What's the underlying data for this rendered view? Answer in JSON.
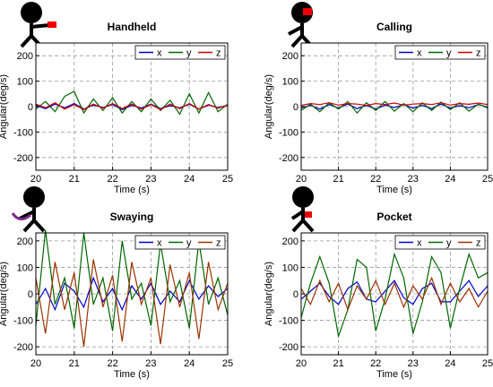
{
  "chart_data": [
    {
      "type": "line",
      "title": "Handheld",
      "xlabel": "Time (s)",
      "ylabel": "Angular(deg/s)",
      "xlim": [
        20,
        25
      ],
      "ylim": [
        -250,
        250
      ],
      "xticks": [
        20,
        21,
        22,
        23,
        24,
        25
      ],
      "yticks": [
        -200,
        -100,
        0,
        100,
        200
      ],
      "grid": true,
      "legend": "top-right",
      "series": [
        {
          "name": "x",
          "color": "#0000cc",
          "t": [
            20,
            20.25,
            20.5,
            20.75,
            21,
            21.25,
            21.5,
            21.75,
            22,
            22.25,
            22.5,
            22.75,
            23,
            23.25,
            23.5,
            23.75,
            24,
            24.25,
            24.5,
            24.75,
            25
          ],
          "values": [
            5,
            -8,
            10,
            -5,
            12,
            -10,
            6,
            -4,
            8,
            -12,
            5,
            -6,
            10,
            -8,
            4,
            -5,
            9,
            -10,
            6,
            -4,
            5
          ]
        },
        {
          "name": "y",
          "color": "#006600",
          "t": [
            20,
            20.25,
            20.5,
            20.75,
            21,
            21.25,
            21.5,
            21.75,
            22,
            22.25,
            22.5,
            22.75,
            23,
            23.25,
            23.5,
            23.75,
            24,
            24.25,
            24.5,
            24.75,
            25
          ],
          "values": [
            -10,
            20,
            -20,
            40,
            60,
            -25,
            30,
            -15,
            35,
            -25,
            20,
            -20,
            30,
            -15,
            25,
            -30,
            50,
            -25,
            55,
            -20,
            10
          ]
        },
        {
          "name": "z",
          "color": "#cc0000",
          "t": [
            20,
            20.25,
            20.5,
            20.75,
            21,
            21.25,
            21.5,
            21.75,
            22,
            22.25,
            22.5,
            22.75,
            23,
            23.25,
            23.5,
            23.75,
            24,
            24.25,
            24.5,
            24.75,
            25
          ],
          "values": [
            10,
            -5,
            15,
            -10,
            8,
            -12,
            10,
            -6,
            12,
            -8,
            10,
            -10,
            8,
            -12,
            10,
            -8,
            12,
            -10,
            8,
            -6,
            5
          ]
        }
      ]
    },
    {
      "type": "line",
      "title": "Calling",
      "xlabel": "Time (s)",
      "ylabel": "Angular(deg/s)",
      "xlim": [
        20,
        25
      ],
      "ylim": [
        -250,
        250
      ],
      "xticks": [
        20,
        21,
        22,
        23,
        24,
        25
      ],
      "yticks": [
        -200,
        -100,
        0,
        100,
        200
      ],
      "grid": true,
      "legend": "top-right",
      "series": [
        {
          "name": "x",
          "color": "#0000cc",
          "t": [
            20,
            20.25,
            20.5,
            20.75,
            21,
            21.25,
            21.5,
            21.75,
            22,
            22.25,
            22.5,
            22.75,
            23,
            23.25,
            23.5,
            23.75,
            24,
            24.25,
            24.5,
            24.75,
            25
          ],
          "values": [
            -5,
            5,
            -10,
            8,
            -6,
            10,
            -8,
            5,
            -10,
            6,
            -4,
            8,
            -6,
            5,
            -8,
            10,
            -6,
            4,
            -5,
            8,
            -2
          ]
        },
        {
          "name": "y",
          "color": "#006600",
          "t": [
            20,
            20.25,
            20.5,
            20.75,
            21,
            21.25,
            21.5,
            21.75,
            22,
            22.25,
            22.5,
            22.75,
            23,
            23.25,
            23.5,
            23.75,
            24,
            24.25,
            24.5,
            24.75,
            25
          ],
          "values": [
            -15,
            10,
            -20,
            15,
            -10,
            20,
            -25,
            15,
            -15,
            20,
            -18,
            12,
            -20,
            15,
            -15,
            18,
            -12,
            15,
            -18,
            10,
            -5
          ]
        },
        {
          "name": "z",
          "color": "#cc0000",
          "t": [
            20,
            20.25,
            20.5,
            20.75,
            21,
            21.25,
            21.5,
            21.75,
            22,
            22.25,
            22.5,
            22.75,
            23,
            23.25,
            23.5,
            23.75,
            24,
            24.25,
            24.5,
            24.75,
            25
          ],
          "values": [
            5,
            12,
            8,
            15,
            6,
            12,
            10,
            5,
            12,
            8,
            14,
            6,
            10,
            12,
            8,
            15,
            6,
            12,
            9,
            14,
            8
          ]
        }
      ]
    },
    {
      "type": "line",
      "title": "Swaying",
      "xlabel": "Time (s)",
      "ylabel": "Angular(deg/s)",
      "xlim": [
        20,
        25
      ],
      "ylim": [
        -230,
        230
      ],
      "xticks": [
        20,
        21,
        22,
        23,
        24,
        25
      ],
      "yticks": [
        -200,
        -100,
        0,
        100,
        200
      ],
      "grid": true,
      "legend": "top-right",
      "series": [
        {
          "name": "x",
          "color": "#0000cc",
          "t": [
            20,
            20.25,
            20.5,
            20.75,
            21,
            21.25,
            21.5,
            21.75,
            22,
            22.25,
            22.5,
            22.75,
            23,
            23.25,
            23.5,
            23.75,
            24,
            24.25,
            24.5,
            24.75,
            25
          ],
          "values": [
            -40,
            20,
            -60,
            40,
            10,
            -50,
            60,
            -30,
            20,
            -60,
            30,
            -20,
            40,
            -40,
            10,
            -30,
            50,
            -20,
            30,
            -10,
            20
          ]
        },
        {
          "name": "y",
          "color": "#006600",
          "t": [
            20,
            20.25,
            20.5,
            20.75,
            21,
            21.25,
            21.5,
            21.75,
            22,
            22.25,
            22.5,
            22.75,
            23,
            23.25,
            23.5,
            23.75,
            24,
            24.25,
            24.5,
            24.75,
            25
          ],
          "values": [
            -120,
            240,
            -40,
            60,
            -130,
            230,
            -40,
            60,
            -140,
            200,
            -20,
            40,
            -120,
            190,
            -30,
            50,
            -130,
            200,
            -40,
            60,
            -80
          ]
        },
        {
          "name": "z",
          "color": "#993300",
          "t": [
            20,
            20.25,
            20.5,
            20.75,
            21,
            21.25,
            21.5,
            21.75,
            22,
            22.25,
            22.5,
            22.75,
            23,
            23.25,
            23.5,
            23.75,
            24,
            24.25,
            24.5,
            24.75,
            25
          ],
          "values": [
            60,
            -150,
            120,
            -60,
            80,
            -200,
            130,
            -50,
            70,
            -180,
            120,
            -40,
            60,
            -190,
            110,
            -50,
            80,
            -170,
            120,
            -60,
            40
          ]
        }
      ]
    },
    {
      "type": "line",
      "title": "Pocket",
      "xlabel": "Time (s)",
      "ylabel": "Angular(deg/s)",
      "xlim": [
        20,
        25
      ],
      "ylim": [
        -230,
        230
      ],
      "xticks": [
        20,
        21,
        22,
        23,
        24,
        25
      ],
      "yticks": [
        -200,
        -100,
        0,
        100,
        200
      ],
      "grid": true,
      "legend": "top-right",
      "series": [
        {
          "name": "x",
          "color": "#0000cc",
          "t": [
            20,
            20.25,
            20.5,
            20.75,
            21,
            21.25,
            21.5,
            21.75,
            22,
            22.25,
            22.5,
            22.75,
            23,
            23.25,
            23.5,
            23.75,
            24,
            24.25,
            24.5,
            24.75,
            25
          ],
          "values": [
            -20,
            10,
            40,
            -10,
            -40,
            20,
            45,
            -20,
            -30,
            10,
            50,
            -15,
            -40,
            20,
            40,
            -30,
            -30,
            10,
            50,
            -10,
            30
          ]
        },
        {
          "name": "y",
          "color": "#006600",
          "t": [
            20,
            20.25,
            20.5,
            20.75,
            21,
            21.25,
            21.5,
            21.75,
            22,
            22.25,
            22.5,
            22.75,
            23,
            23.25,
            23.5,
            23.75,
            24,
            24.25,
            24.5,
            24.75,
            25
          ],
          "values": [
            -90,
            40,
            140,
            40,
            -160,
            -60,
            130,
            100,
            -140,
            -20,
            150,
            60,
            -150,
            -30,
            140,
            80,
            -130,
            20,
            150,
            60,
            80
          ]
        },
        {
          "name": "z",
          "color": "#993300",
          "t": [
            20,
            20.25,
            20.5,
            20.75,
            21,
            21.25,
            21.5,
            21.75,
            22,
            22.25,
            22.5,
            22.75,
            23,
            23.25,
            23.5,
            23.75,
            24,
            24.25,
            24.5,
            24.75,
            25
          ],
          "values": [
            20,
            -40,
            50,
            -30,
            40,
            -60,
            30,
            -20,
            50,
            -40,
            40,
            -50,
            30,
            -20,
            60,
            -40,
            40,
            -30,
            20,
            -50,
            10
          ]
        }
      ]
    }
  ]
}
